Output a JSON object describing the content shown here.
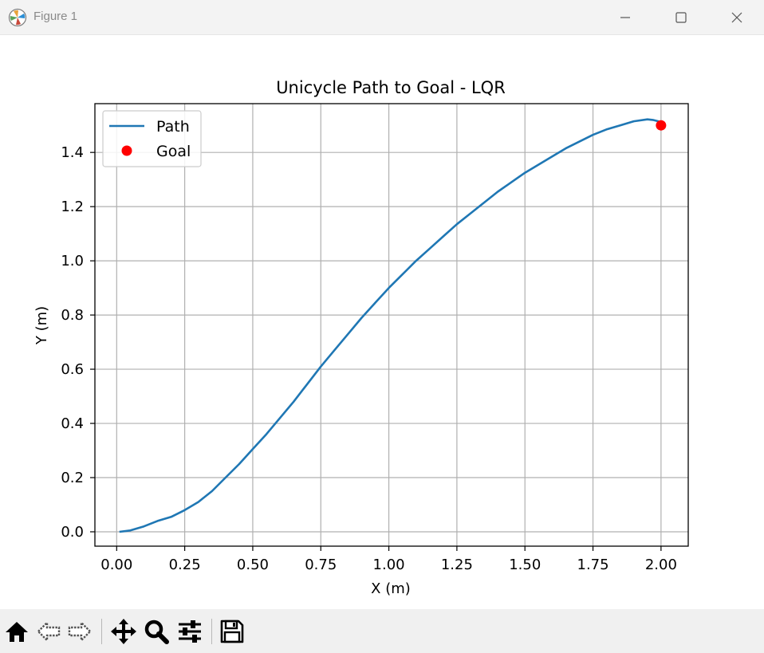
{
  "window": {
    "title": "Figure 1",
    "controls": [
      "minimize",
      "maximize",
      "close"
    ]
  },
  "chart_data": {
    "type": "line",
    "title": "Unicycle Path to Goal - LQR",
    "xlabel": "X (m)",
    "ylabel": "Y (m)",
    "xlim": [
      -0.08,
      2.1
    ],
    "ylim": [
      -0.053,
      1.58
    ],
    "xticks": [
      0.0,
      0.25,
      0.5,
      0.75,
      1.0,
      1.25,
      1.5,
      1.75,
      2.0
    ],
    "xtick_labels": [
      "0.00",
      "0.25",
      "0.50",
      "0.75",
      "1.00",
      "1.25",
      "1.50",
      "1.75",
      "2.00"
    ],
    "yticks": [
      0.0,
      0.2,
      0.4,
      0.6,
      0.8,
      1.0,
      1.2,
      1.4
    ],
    "ytick_labels": [
      "0.0",
      "0.2",
      "0.4",
      "0.6",
      "0.8",
      "1.0",
      "1.2",
      "1.4"
    ],
    "grid": true,
    "legend_position": "top-left",
    "series": [
      {
        "name": "Path",
        "type": "line",
        "color": "#1f77b4",
        "x": [
          0.01,
          0.05,
          0.1,
          0.15,
          0.2,
          0.25,
          0.3,
          0.35,
          0.4,
          0.45,
          0.5,
          0.55,
          0.6,
          0.65,
          0.7,
          0.75,
          0.8,
          0.85,
          0.9,
          0.95,
          1.0,
          1.05,
          1.1,
          1.15,
          1.2,
          1.25,
          1.3,
          1.35,
          1.4,
          1.45,
          1.5,
          1.55,
          1.6,
          1.65,
          1.7,
          1.75,
          1.8,
          1.85,
          1.9,
          1.95,
          1.97,
          1.99,
          2.0
        ],
        "y": [
          0.0,
          0.005,
          0.02,
          0.04,
          0.055,
          0.08,
          0.11,
          0.15,
          0.2,
          0.25,
          0.305,
          0.36,
          0.42,
          0.48,
          0.545,
          0.61,
          0.67,
          0.73,
          0.79,
          0.845,
          0.9,
          0.95,
          1.0,
          1.045,
          1.09,
          1.135,
          1.175,
          1.215,
          1.255,
          1.29,
          1.325,
          1.355,
          1.385,
          1.415,
          1.44,
          1.465,
          1.485,
          1.5,
          1.515,
          1.522,
          1.52,
          1.515,
          1.5
        ]
      },
      {
        "name": "Goal",
        "type": "scatter",
        "color": "#ff0000",
        "x": [
          2.0
        ],
        "y": [
          1.5
        ]
      }
    ]
  },
  "toolbar": {
    "items": [
      "home-icon",
      "back-icon",
      "forward-icon",
      "pan-icon",
      "zoom-icon",
      "configure-subplots-icon",
      "save-icon"
    ]
  }
}
